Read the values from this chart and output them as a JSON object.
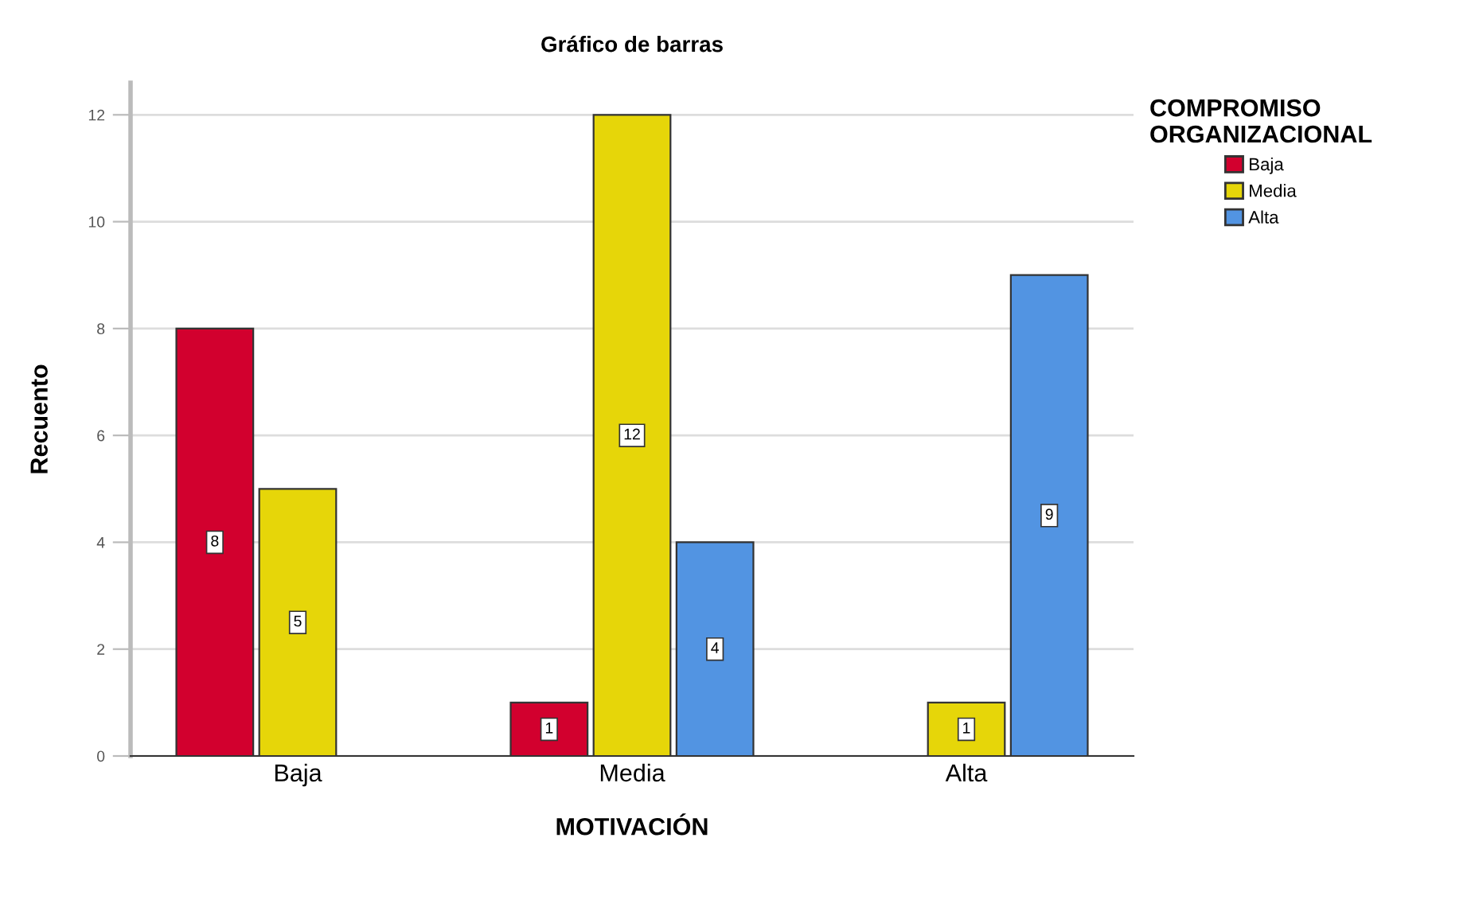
{
  "chart_data": {
    "type": "bar",
    "title": "Gráfico de barras",
    "xlabel": "MOTIVACIÓN",
    "ylabel": "Recuento",
    "legend_title": "COMPROMISO\nORGANIZACIONAL",
    "categories": [
      "Baja",
      "Media",
      "Alta"
    ],
    "series": [
      {
        "name": "Baja",
        "color": "#d2002e",
        "values": [
          8,
          1,
          null
        ]
      },
      {
        "name": "Media",
        "color": "#e6d609",
        "values": [
          5,
          12,
          1
        ]
      },
      {
        "name": "Alta",
        "color": "#5294e2",
        "values": [
          null,
          4,
          9
        ]
      }
    ],
    "ylim": [
      0,
      12.6
    ],
    "yticks": [
      0,
      2,
      4,
      6,
      8,
      10,
      12
    ],
    "grid": "y",
    "legend": "top right",
    "data_labels": true
  }
}
